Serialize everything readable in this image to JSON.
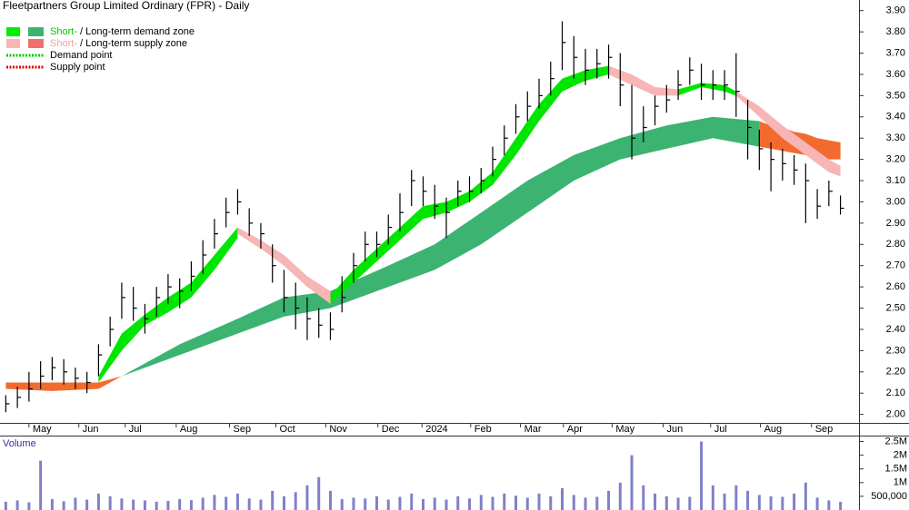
{
  "chart_data": {
    "type": "ohlc",
    "title": "Fleetpartners Group Limited Ordinary (FPR) - Daily",
    "xlim": [
      -0.5,
      73.6
    ],
    "xticks": [
      {
        "value": 2,
        "label": "May"
      },
      {
        "value": 6.3,
        "label": "Jun"
      },
      {
        "value": 10.3,
        "label": "Jul"
      },
      {
        "value": 14.7,
        "label": "Aug"
      },
      {
        "value": 19.3,
        "label": "Sep"
      },
      {
        "value": 23.3,
        "label": "Oct"
      },
      {
        "value": 27.6,
        "label": "Nov"
      },
      {
        "value": 32.1,
        "label": "Dec"
      },
      {
        "value": 35.9,
        "label": "2024"
      },
      {
        "value": 40.1,
        "label": "Feb"
      },
      {
        "value": 44.4,
        "label": "Mar"
      },
      {
        "value": 48.1,
        "label": "Apr"
      },
      {
        "value": 52.3,
        "label": "May"
      },
      {
        "value": 56.7,
        "label": "Jun"
      },
      {
        "value": 60.8,
        "label": "Jul"
      },
      {
        "value": 65.1,
        "label": "Aug"
      },
      {
        "value": 69.5,
        "label": "Sep"
      }
    ],
    "ylim": [
      1.96,
      3.95
    ],
    "yticks": [
      {
        "value": 2.0,
        "label": "2.00"
      },
      {
        "value": 2.1,
        "label": "2.10"
      },
      {
        "value": 2.2,
        "label": "2.20"
      },
      {
        "value": 2.3,
        "label": "2.30"
      },
      {
        "value": 2.4,
        "label": "2.40"
      },
      {
        "value": 2.5,
        "label": "2.50"
      },
      {
        "value": 2.6,
        "label": "2.60"
      },
      {
        "value": 2.7,
        "label": "2.70"
      },
      {
        "value": 2.8,
        "label": "2.80"
      },
      {
        "value": 2.9,
        "label": "2.90"
      },
      {
        "value": 3.0,
        "label": "3.00"
      },
      {
        "value": 3.1,
        "label": "3.10"
      },
      {
        "value": 3.2,
        "label": "3.20"
      },
      {
        "value": 3.3,
        "label": "3.30"
      },
      {
        "value": 3.4,
        "label": "3.40"
      },
      {
        "value": 3.5,
        "label": "3.50"
      },
      {
        "value": 3.6,
        "label": "3.60"
      },
      {
        "value": 3.7,
        "label": "3.70"
      },
      {
        "value": 3.8,
        "label": "3.80"
      },
      {
        "value": 3.9,
        "label": "3.90"
      }
    ],
    "color": "#000000",
    "high": [
      2.09,
      2.13,
      2.2,
      2.25,
      2.27,
      2.26,
      2.22,
      2.2,
      2.33,
      2.46,
      2.62,
      2.6,
      2.52,
      2.6,
      2.66,
      2.64,
      2.72,
      2.82,
      2.92,
      3.02,
      3.06,
      2.97,
      2.9,
      2.8,
      2.68,
      2.62,
      2.55,
      2.5,
      2.48,
      2.65,
      2.76,
      2.86,
      2.86,
      2.94,
      3.04,
      3.15,
      3.12,
      3.08,
      3.02,
      3.1,
      3.12,
      3.16,
      3.26,
      3.36,
      3.46,
      3.52,
      3.58,
      3.66,
      3.85,
      3.78,
      3.72,
      3.72,
      3.74,
      3.7,
      3.55,
      3.45,
      3.5,
      3.55,
      3.62,
      3.68,
      3.65,
      3.62,
      3.62,
      3.7,
      3.48,
      3.34,
      3.28,
      3.25,
      3.22,
      3.18,
      3.06,
      3.1,
      3.03
    ],
    "low": [
      2.01,
      2.03,
      2.06,
      2.12,
      2.16,
      2.14,
      2.12,
      2.1,
      2.18,
      2.32,
      2.45,
      2.44,
      2.38,
      2.46,
      2.52,
      2.5,
      2.58,
      2.66,
      2.78,
      2.88,
      2.94,
      2.84,
      2.78,
      2.62,
      2.48,
      2.4,
      2.35,
      2.36,
      2.35,
      2.48,
      2.62,
      2.72,
      2.74,
      2.8,
      2.86,
      2.98,
      2.98,
      2.92,
      2.83,
      2.98,
      3.0,
      3.04,
      3.12,
      3.22,
      3.32,
      3.38,
      3.44,
      3.5,
      3.62,
      3.58,
      3.55,
      3.58,
      3.58,
      3.45,
      3.2,
      3.28,
      3.36,
      3.42,
      3.48,
      3.55,
      3.48,
      3.48,
      3.48,
      3.4,
      3.2,
      3.15,
      3.05,
      3.1,
      3.08,
      2.9,
      2.92,
      2.98,
      2.94
    ],
    "close": [
      2.05,
      2.08,
      2.12,
      2.18,
      2.22,
      2.2,
      2.17,
      2.15,
      2.28,
      2.4,
      2.55,
      2.5,
      2.45,
      2.55,
      2.6,
      2.58,
      2.65,
      2.75,
      2.85,
      2.95,
      3.0,
      2.9,
      2.85,
      2.7,
      2.55,
      2.5,
      2.45,
      2.42,
      2.4,
      2.55,
      2.7,
      2.8,
      2.8,
      2.88,
      2.95,
      3.1,
      3.05,
      2.98,
      2.95,
      3.05,
      3.05,
      3.1,
      3.2,
      3.3,
      3.4,
      3.45,
      3.5,
      3.58,
      3.75,
      3.68,
      3.62,
      3.65,
      3.68,
      3.55,
      3.3,
      3.35,
      3.45,
      3.48,
      3.55,
      3.62,
      3.55,
      3.55,
      3.55,
      3.52,
      3.35,
      3.25,
      3.2,
      3.18,
      3.15,
      3.1,
      2.98,
      3.05,
      2.97
    ],
    "zones": [
      {
        "color": "#f26a2e",
        "x": [
          0,
          4,
          8,
          10
        ],
        "upper": [
          2.15,
          2.15,
          2.15,
          2.18
        ],
        "lower": [
          2.12,
          2.11,
          2.12,
          2.18
        ]
      },
      {
        "color": "#3cb371",
        "x": [
          10,
          15,
          20,
          24,
          28,
          33,
          37,
          41,
          45,
          49,
          53,
          57,
          61,
          65
        ],
        "upper": [
          2.18,
          2.33,
          2.45,
          2.55,
          2.58,
          2.7,
          2.8,
          2.95,
          3.1,
          3.22,
          3.3,
          3.36,
          3.4,
          3.38
        ],
        "lower": [
          2.18,
          2.28,
          2.38,
          2.46,
          2.5,
          2.6,
          2.68,
          2.8,
          2.95,
          3.1,
          3.2,
          3.25,
          3.3,
          3.26
        ]
      },
      {
        "color": "#f26a2e",
        "x": [
          65,
          66,
          67,
          68,
          69,
          70,
          71,
          72
        ],
        "upper": [
          3.38,
          3.36,
          3.35,
          3.33,
          3.32,
          3.3,
          3.29,
          3.28
        ],
        "lower": [
          3.26,
          3.25,
          3.24,
          3.23,
          3.22,
          3.21,
          3.2,
          3.2
        ]
      },
      {
        "color": "#00e600",
        "x": [
          8,
          10,
          12,
          14,
          16,
          18,
          20
        ],
        "upper": [
          2.18,
          2.38,
          2.47,
          2.55,
          2.62,
          2.75,
          2.88
        ],
        "lower": [
          2.15,
          2.3,
          2.42,
          2.48,
          2.55,
          2.68,
          2.83
        ]
      },
      {
        "color": "#f7b5b5",
        "x": [
          20,
          22,
          24,
          26,
          28
        ],
        "upper": [
          2.88,
          2.82,
          2.75,
          2.65,
          2.58
        ],
        "lower": [
          2.85,
          2.78,
          2.7,
          2.6,
          2.52
        ]
      },
      {
        "color": "#00e600",
        "x": [
          28,
          30,
          32,
          34,
          36,
          38,
          40,
          42,
          44,
          46,
          48,
          50,
          52
        ],
        "upper": [
          2.56,
          2.68,
          2.78,
          2.88,
          2.98,
          3.0,
          3.05,
          3.14,
          3.3,
          3.46,
          3.58,
          3.62,
          3.64
        ],
        "lower": [
          2.52,
          2.62,
          2.72,
          2.82,
          2.92,
          2.95,
          3.0,
          3.08,
          3.22,
          3.38,
          3.52,
          3.57,
          3.6
        ]
      },
      {
        "color": "#f7b5b5",
        "x": [
          52,
          54,
          56,
          58
        ],
        "upper": [
          3.64,
          3.6,
          3.54,
          3.53
        ],
        "lower": [
          3.6,
          3.55,
          3.5,
          3.5
        ]
      },
      {
        "color": "#00e600",
        "x": [
          58,
          60,
          62,
          63
        ],
        "upper": [
          3.53,
          3.56,
          3.55,
          3.52
        ],
        "lower": [
          3.5,
          3.54,
          3.52,
          3.5
        ]
      },
      {
        "color": "#f7b5b5",
        "x": [
          63,
          65,
          67,
          69,
          71,
          72
        ],
        "upper": [
          3.52,
          3.45,
          3.36,
          3.28,
          3.2,
          3.17
        ],
        "lower": [
          3.5,
          3.4,
          3.3,
          3.22,
          3.14,
          3.12
        ]
      }
    ],
    "legend": [
      {
        "short": "Short-",
        "sep": " / ",
        "long": "Long-term demand zone",
        "short_color": "#00ee00",
        "long_color": "#3cb371",
        "text_color": "#00cc00"
      },
      {
        "short": "Short-",
        "sep": " / ",
        "long": "Long-term supply zone",
        "short_color": "#f7b5b5",
        "long_color": "#f07070",
        "text_color": "#f7a0a0"
      },
      {
        "label": "Demand point",
        "color": "#00cc00"
      },
      {
        "label": "Supply point",
        "color": "#dd0000"
      }
    ],
    "volume": {
      "label": "Volume",
      "color": "#8080c8",
      "ylim": [
        0,
        2650000
      ],
      "yticks": [
        {
          "value": 500000,
          "label": "500,000"
        },
        {
          "value": 1000000,
          "label": "1M"
        },
        {
          "value": 1500000,
          "label": "1.5M"
        },
        {
          "value": 2000000,
          "label": "2M"
        },
        {
          "value": 2500000,
          "label": "2.5M"
        }
      ],
      "values": [
        300000,
        350000,
        280000,
        1800000,
        400000,
        320000,
        450000,
        380000,
        600000,
        500000,
        420000,
        380000,
        350000,
        300000,
        330000,
        400000,
        360000,
        450000,
        550000,
        480000,
        600000,
        420000,
        380000,
        700000,
        500000,
        650000,
        900000,
        1200000,
        700000,
        400000,
        450000,
        420000,
        500000,
        380000,
        480000,
        600000,
        400000,
        450000,
        380000,
        500000,
        420000,
        550000,
        480000,
        600000,
        520000,
        450000,
        600000,
        500000,
        800000,
        550000,
        450000,
        480000,
        700000,
        1000000,
        2000000,
        900000,
        600000,
        500000,
        450000,
        480000,
        2500000,
        900000,
        600000,
        900000,
        700000,
        550000,
        500000,
        480000,
        600000,
        1000000,
        450000,
        350000,
        300000
      ]
    }
  }
}
